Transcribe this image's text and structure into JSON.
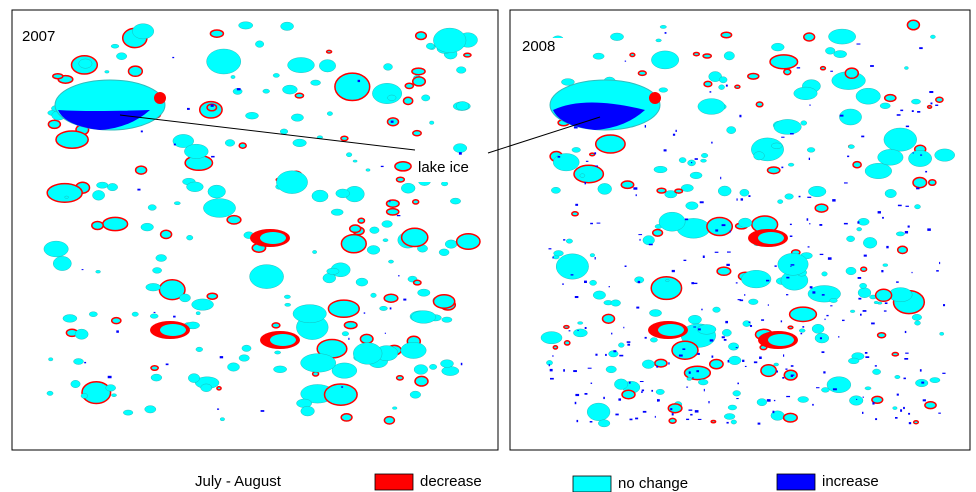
{
  "panels": [
    {
      "label": "2007"
    },
    {
      "label": "2008"
    }
  ],
  "annotation": "lake ice",
  "period": "July - August",
  "legend": [
    {
      "name": "decrease",
      "color": "#ff0000"
    },
    {
      "name": "no change",
      "color": "#00ffff"
    },
    {
      "name": "increase",
      "color": "#0000ff"
    }
  ]
}
